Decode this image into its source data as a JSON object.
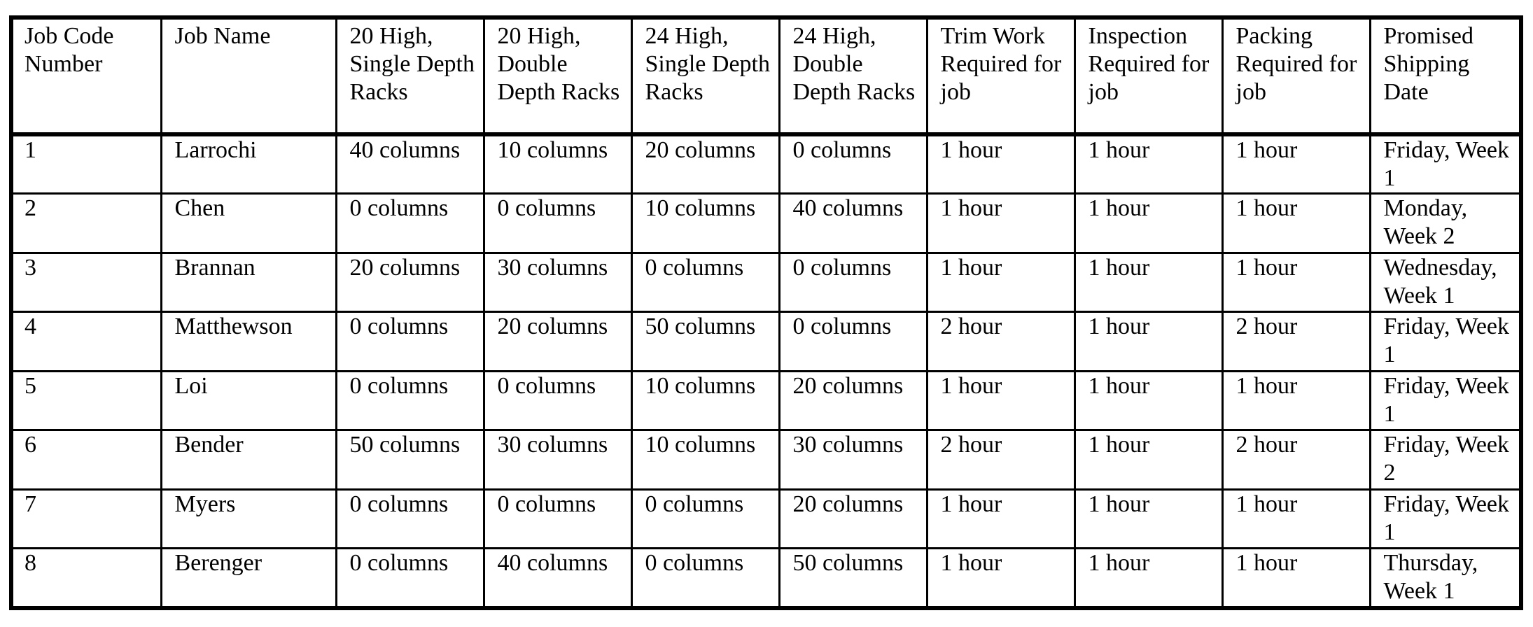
{
  "table": {
    "columns": [
      "Job Code Number",
      "Job Name",
      "20 High, Single Depth Racks",
      "20 High, Double Depth Racks",
      "24 High, Single Depth Racks",
      "24 High, Double Depth Racks",
      "Trim Work Required for job",
      "Inspection Required for job",
      "Packing Required for job",
      "Promised Shipping Date"
    ],
    "rows": [
      [
        "1",
        "Larrochi",
        "40 columns",
        "10 columns",
        "20 columns",
        "0 columns",
        "1 hour",
        "1 hour",
        "1 hour",
        "Friday, Week 1"
      ],
      [
        "2",
        "Chen",
        "0 columns",
        "0 columns",
        "10 columns",
        "40 columns",
        "1 hour",
        "1 hour",
        "1 hour",
        "Monday, Week 2"
      ],
      [
        "3",
        "Brannan",
        "20 columns",
        "30 columns",
        "0 columns",
        "0 columns",
        "1 hour",
        "1 hour",
        "1 hour",
        "Wednesday, Week 1"
      ],
      [
        "4",
        "Matthewson",
        "0 columns",
        "20 columns",
        "50 columns",
        "0 columns",
        "2 hour",
        "1 hour",
        "2 hour",
        "Friday, Week 1"
      ],
      [
        "5",
        "Loi",
        "0 columns",
        "0 columns",
        "10 columns",
        "20 columns",
        "1 hour",
        "1 hour",
        "1 hour",
        "Friday, Week 1"
      ],
      [
        "6",
        "Bender",
        "50 columns",
        "30 columns",
        "10 columns",
        "30 columns",
        "2 hour",
        "1 hour",
        "2 hour",
        "Friday, Week 2"
      ],
      [
        "7",
        "Myers",
        "0 columns",
        "0 columns",
        "0 columns",
        "20 columns",
        "1 hour",
        "1 hour",
        "1 hour",
        "Friday, Week 1"
      ],
      [
        "8",
        "Berenger",
        "0 columns",
        "40 columns",
        "0 columns",
        "50 columns",
        "1 hour",
        "1 hour",
        "1 hour",
        "Thursday, Week 1"
      ]
    ]
  }
}
